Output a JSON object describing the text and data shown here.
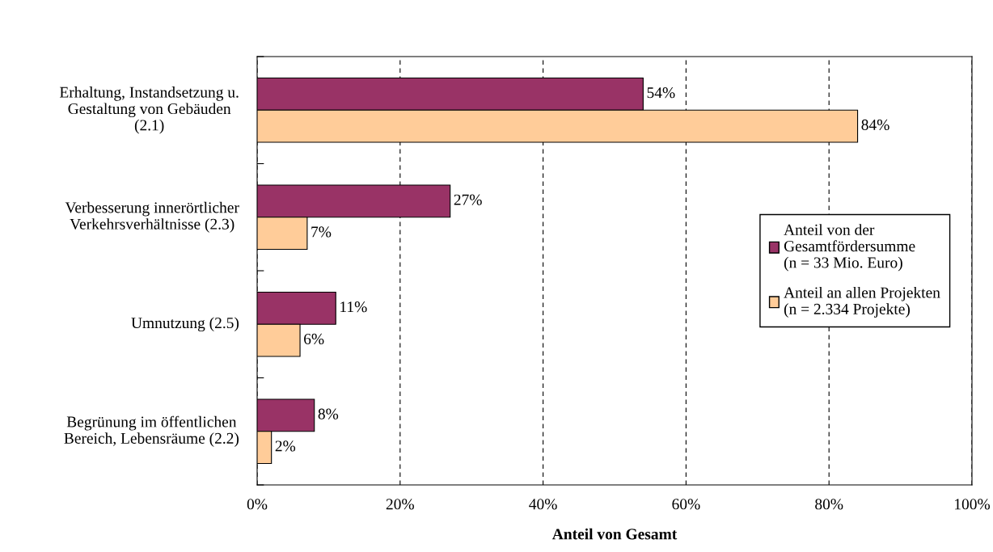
{
  "chart_data": {
    "type": "bar",
    "orientation": "horizontal",
    "categories": [
      "Erhaltung, Instandsetzung u.\nGestaltung von Gebäuden\n(2.1)",
      "Verbesserung innerörtlicher\nVerkehrsverhältnisse (2.3)",
      "Umnutzung (2.5)",
      "Begrünung im öffentlichen\nBereich, Lebensräume (2.2)"
    ],
    "series": [
      {
        "name": "Anteil von der\nGesamtfördersumme\n(n = 33 Mio. Euro)",
        "color": "#993366",
        "values": [
          54,
          27,
          11,
          8
        ],
        "value_labels": [
          "54%",
          "27%",
          "11%",
          "8%"
        ]
      },
      {
        "name": "Anteil an allen Projekten\n(n = 2.334 Projekte)",
        "color": "#ffcc99",
        "values": [
          84,
          7,
          6,
          2
        ],
        "value_labels": [
          "84%",
          "7%",
          "6%",
          "2%"
        ]
      }
    ],
    "xlabel": "Anteil von Gesamt",
    "xlim": [
      0,
      100
    ],
    "xticks": [
      {
        "value": 0,
        "label": "0%"
      },
      {
        "value": 20,
        "label": "20%"
      },
      {
        "value": 40,
        "label": "40%"
      },
      {
        "value": 60,
        "label": "60%"
      },
      {
        "value": 80,
        "label": "80%"
      },
      {
        "value": 100,
        "label": "100%"
      }
    ],
    "grid": "x",
    "legend": "right"
  }
}
